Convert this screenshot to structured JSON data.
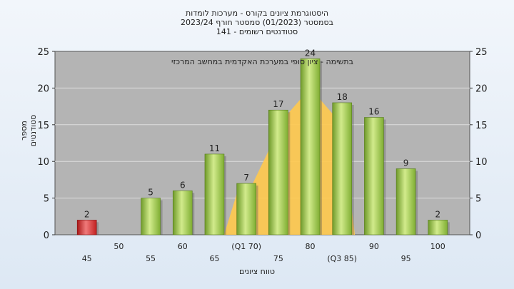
{
  "chart_data": {
    "type": "bar",
    "title_lines": [
      "היסטוגרמת ציונים בקורס - מערכות לומדות",
      "בסמסטר  (01/2023)  סמסטר חורף 2023/24",
      "141 - סטודנטים רשומים"
    ],
    "annotation": "בתשימה - ציון סופי במערכת האקדמית במחשב המרכזי",
    "xlabel": "טווח ציונים",
    "ylabel": "מספר סטודנטים",
    "ylim": [
      0,
      25
    ],
    "yticks": [
      0,
      5,
      10,
      15,
      20,
      25
    ],
    "grid": true,
    "x_tick_labels": [
      {
        "x": 45,
        "label": "45"
      },
      {
        "x": 50,
        "label": "50"
      },
      {
        "x": 55,
        "label": "55"
      },
      {
        "x": 60,
        "label": "60"
      },
      {
        "x": 65,
        "label": "65"
      },
      {
        "x": 70,
        "label": "(Q1 70)"
      },
      {
        "x": 75,
        "label": "75"
      },
      {
        "x": 80,
        "label": "80"
      },
      {
        "x": 85,
        "label": "(Q3 85)"
      },
      {
        "x": 90,
        "label": "90"
      },
      {
        "x": 95,
        "label": "95"
      },
      {
        "x": 100,
        "label": "100"
      }
    ],
    "bars": [
      {
        "x": 45,
        "value": 2,
        "color": "#d42a2a"
      },
      {
        "x": 55,
        "value": 5,
        "color": "#8fbf3f"
      },
      {
        "x": 60,
        "value": 6,
        "color": "#8fbf3f"
      },
      {
        "x": 65,
        "value": 11,
        "color": "#8fbf3f"
      },
      {
        "x": 70,
        "value": 7,
        "color": "#8fbf3f"
      },
      {
        "x": 75,
        "value": 17,
        "color": "#8fbf3f"
      },
      {
        "x": 80,
        "value": 24,
        "color": "#8fbf3f"
      },
      {
        "x": 85,
        "value": 18,
        "color": "#8fbf3f"
      },
      {
        "x": 90,
        "value": 16,
        "color": "#8fbf3f"
      },
      {
        "x": 95,
        "value": 9,
        "color": "#8fbf3f"
      },
      {
        "x": 100,
        "value": 2,
        "color": "#8fbf3f"
      }
    ],
    "distribution_area": {
      "color": "#ffc94d",
      "points": [
        [
          66.5,
          0
        ],
        [
          69,
          7
        ],
        [
          71,
          7
        ],
        [
          76,
          16
        ],
        [
          79,
          19
        ],
        [
          81,
          19
        ],
        [
          84,
          16
        ],
        [
          86,
          7
        ],
        [
          87,
          0
        ]
      ]
    },
    "colors": {
      "plot_background": "#b4b4b4",
      "red_bar": "#d42a2a",
      "green_bar": "#8fbf3f",
      "area": "#ffc94d"
    }
  }
}
